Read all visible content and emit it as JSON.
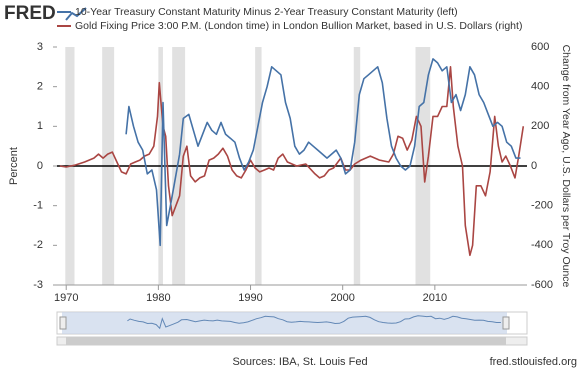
{
  "chart_data": {
    "type": "line",
    "logo": "FRED",
    "ylabel": "Percent",
    "y2label": "Change from Year Ago, U.S. Dollars per Troy Ounce",
    "source": "Sources: IBA, St. Louis Fed",
    "site": "fred.stlouisfed.org",
    "xlim": [
      1969,
      2020
    ],
    "xticks": [
      1970,
      1980,
      1990,
      2000,
      2010
    ],
    "ylim": [
      -3,
      3
    ],
    "yticks": [
      -3,
      -2,
      -1,
      0,
      1,
      2,
      3
    ],
    "y2lim": [
      -600,
      600
    ],
    "y2ticks": [
      -600,
      -400,
      -200,
      0,
      200,
      400,
      600
    ],
    "grid": false,
    "recession_color": "#e1e1e1",
    "recessions": [
      [
        1969.9,
        1970.9
      ],
      [
        1973.9,
        1975.2
      ],
      [
        1980.0,
        1980.5
      ],
      [
        1981.5,
        1982.9
      ],
      [
        1990.5,
        1991.2
      ],
      [
        2001.2,
        2001.9
      ],
      [
        2007.9,
        2009.5
      ]
    ],
    "series": [
      {
        "name": "10-Year Treasury Constant Maturity Minus 2-Year Treasury Constant Maturity (left)",
        "color": "#4572a7",
        "axis": "y",
        "x": [
          1976.5,
          1976.8,
          1977.3,
          1977.8,
          1978.3,
          1978.8,
          1979.3,
          1979.8,
          1980.2,
          1980.5,
          1980.9,
          1981.3,
          1981.7,
          1982.3,
          1982.7,
          1983.3,
          1983.8,
          1984.3,
          1984.8,
          1985.3,
          1985.8,
          1986.3,
          1986.8,
          1987.3,
          1987.8,
          1988.3,
          1988.8,
          1989.3,
          1989.8,
          1990.3,
          1990.8,
          1991.3,
          1991.8,
          1992.3,
          1992.8,
          1993.3,
          1993.8,
          1994.3,
          1994.8,
          1995.3,
          1995.8,
          1996.3,
          1996.8,
          1997.3,
          1997.8,
          1998.3,
          1998.8,
          1999.3,
          1999.8,
          2000.3,
          2000.8,
          2001.3,
          2001.8,
          2002.3,
          2002.8,
          2003.3,
          2003.8,
          2004.3,
          2004.8,
          2005.3,
          2005.8,
          2006.3,
          2006.8,
          2007.3,
          2007.8,
          2008.3,
          2008.8,
          2009.3,
          2009.8,
          2010.3,
          2010.8,
          2011.3,
          2011.8,
          2012.3,
          2012.8,
          2013.3,
          2013.8,
          2014.3,
          2014.8,
          2015.3,
          2015.8,
          2016.3,
          2016.8,
          2017.3,
          2017.8,
          2018.3,
          2018.8,
          2019.3
        ],
        "values": [
          0.8,
          1.5,
          1.0,
          0.6,
          0.4,
          -0.2,
          -0.1,
          -0.6,
          -2.0,
          1.6,
          -1.5,
          -1.0,
          -0.5,
          0.3,
          1.2,
          1.3,
          0.9,
          0.5,
          0.8,
          1.1,
          0.9,
          0.8,
          1.1,
          0.8,
          0.7,
          0.6,
          0.2,
          -0.1,
          0.1,
          0.4,
          1.0,
          1.6,
          2.0,
          2.5,
          2.4,
          2.3,
          1.6,
          1.2,
          0.5,
          0.3,
          0.4,
          0.6,
          0.5,
          0.4,
          0.3,
          0.2,
          0.3,
          0.4,
          0.2,
          -0.2,
          -0.1,
          0.6,
          1.8,
          2.2,
          2.3,
          2.4,
          2.5,
          2.1,
          1.2,
          0.5,
          0.2,
          0.0,
          -0.1,
          0.0,
          0.5,
          1.5,
          1.6,
          2.3,
          2.7,
          2.6,
          2.4,
          2.5,
          1.6,
          1.8,
          1.4,
          1.8,
          2.5,
          2.3,
          1.8,
          1.6,
          1.3,
          1.0,
          1.1,
          1.0,
          0.6,
          0.5,
          0.2,
          0.2
        ]
      },
      {
        "name": "Gold Fixing Price 3:00 P.M. (London time) in London Bullion Market, based in U.S. Dollars (right)",
        "color": "#aa4643",
        "axis": "y2",
        "x": [
          1969.3,
          1970,
          1971,
          1972,
          1973,
          1973.5,
          1974,
          1974.5,
          1975,
          1975.5,
          1976,
          1976.5,
          1977,
          1977.5,
          1978,
          1978.5,
          1979,
          1979.5,
          1979.9,
          1980.1,
          1980.5,
          1980.8,
          1981.1,
          1981.5,
          1981.9,
          1982.3,
          1982.7,
          1983.1,
          1983.5,
          1984,
          1984.5,
          1985,
          1985.5,
          1986,
          1986.5,
          1987,
          1987.5,
          1988,
          1988.5,
          1989,
          1989.5,
          1990,
          1990.5,
          1991,
          1991.5,
          1992,
          1992.5,
          1993,
          1993.5,
          1994,
          1995,
          1996,
          1997,
          1997.5,
          1998,
          1998.5,
          1999,
          1999.8,
          2000.3,
          2000.8,
          2001.3,
          2002,
          2002.5,
          2003,
          2003.5,
          2004,
          2005,
          2005.5,
          2006,
          2006.5,
          2007,
          2007.5,
          2008,
          2008.5,
          2008.9,
          2009.3,
          2009.8,
          2010.3,
          2010.8,
          2011.3,
          2011.7,
          2012,
          2012.5,
          2013,
          2013.3,
          2013.8,
          2014.1,
          2014.5,
          2015,
          2015.5,
          2016,
          2016.5,
          2016.9,
          2017.3,
          2017.7,
          2018.2,
          2018.7,
          2019.1,
          2019.6
        ],
        "values": [
          0,
          -5,
          5,
          20,
          40,
          60,
          40,
          60,
          70,
          20,
          -30,
          -40,
          10,
          20,
          30,
          50,
          60,
          100,
          250,
          420,
          200,
          150,
          -100,
          -250,
          -200,
          -150,
          50,
          100,
          -50,
          -80,
          -60,
          -50,
          30,
          40,
          60,
          90,
          50,
          -20,
          -50,
          -60,
          -20,
          30,
          -10,
          -30,
          -20,
          -10,
          -20,
          40,
          60,
          20,
          0,
          10,
          -40,
          -60,
          -50,
          -20,
          -10,
          40,
          -20,
          -20,
          10,
          30,
          40,
          50,
          40,
          30,
          20,
          60,
          150,
          140,
          80,
          130,
          250,
          200,
          -80,
          50,
          250,
          250,
          300,
          300,
          500,
          300,
          100,
          0,
          -300,
          -450,
          -400,
          -100,
          -100,
          -150,
          -30,
          250,
          100,
          20,
          50,
          0,
          -60,
          50,
          200
        ]
      }
    ]
  }
}
